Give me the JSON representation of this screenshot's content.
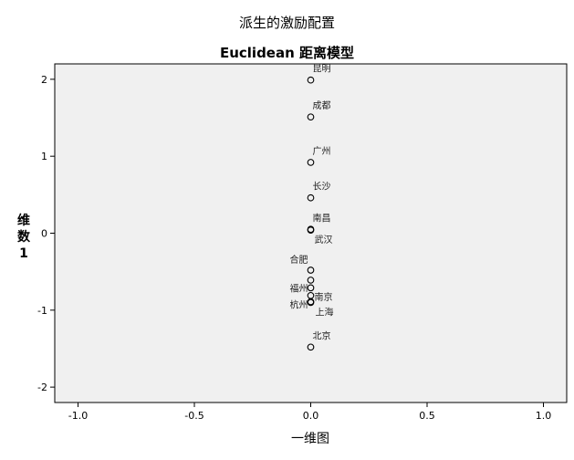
{
  "chart_data": {
    "type": "scatter",
    "title": "派生的激励配置",
    "subtitle": "Euclidean 距离模型",
    "xlabel": "一维图",
    "ylabel": [
      "维",
      "数",
      "1"
    ],
    "xlim": [
      -1.1,
      1.1
    ],
    "ylim": [
      -2.2,
      2.2
    ],
    "xticks": [
      "-1.0",
      "-0.5",
      "0.0",
      "0.5",
      "1.0"
    ],
    "yticks": [
      "2",
      "1",
      "0",
      "-1",
      "-2"
    ],
    "grid": false,
    "points": [
      {
        "label": "昆明",
        "x": 0,
        "y": 1.99
      },
      {
        "label": "成都",
        "x": 0,
        "y": 1.51
      },
      {
        "label": "广州",
        "x": 0,
        "y": 0.92
      },
      {
        "label": "长沙",
        "x": 0,
        "y": 0.46
      },
      {
        "label": "南昌",
        "x": 0,
        "y": 0.05
      },
      {
        "label": "武汉",
        "x": 0,
        "y": 0.04
      },
      {
        "label": "合肥",
        "x": 0,
        "y": -0.48
      },
      {
        "label": "",
        "x": 0,
        "y": -0.61
      },
      {
        "label": "福州",
        "x": 0,
        "y": -0.71
      },
      {
        "label": "南京",
        "x": 0,
        "y": -0.81
      },
      {
        "label": "杭州",
        "x": 0,
        "y": -0.89
      },
      {
        "label": "上海",
        "x": 0,
        "y": -0.9
      },
      {
        "label": "北京",
        "x": 0,
        "y": -1.48
      }
    ]
  }
}
